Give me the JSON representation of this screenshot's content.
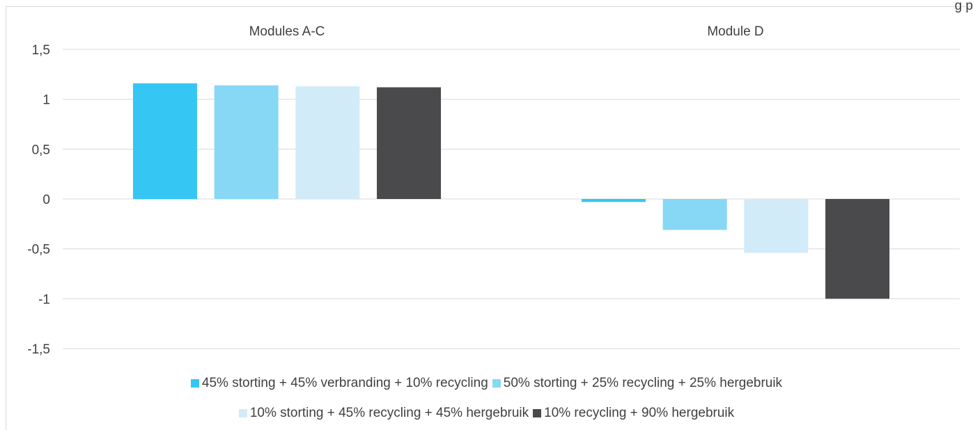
{
  "corner_text": "g  p",
  "chart_data": {
    "type": "bar",
    "title": "",
    "xlabel": "",
    "ylabel": "",
    "categories": [
      "Modules A-C",
      "Module D"
    ],
    "ylim": [
      -1.5,
      1.5
    ],
    "yticks": [
      "1,5",
      "1",
      "0,5",
      "0",
      "-0,5",
      "-1",
      "-1,5"
    ],
    "ytick_values": [
      1.5,
      1,
      0.5,
      0,
      -0.5,
      -1,
      -1.5
    ],
    "grid": true,
    "legend_position": "bottom",
    "series": [
      {
        "name": "45% storting + 45% verbranding + 10% recycling",
        "color": "#35c6f4",
        "values": [
          1.16,
          -0.03
        ]
      },
      {
        "name": "50% storting + 25% recycling + 25% hergebruik",
        "color": "#87d8f5",
        "values": [
          1.14,
          -0.31
        ]
      },
      {
        "name": "10% storting + 45% recycling + 45% hergebruik",
        "color": "#d1ecf8",
        "values": [
          1.13,
          -0.54
        ]
      },
      {
        "name": "10% recycling + 90% hergebruik",
        "color": "#4a4a4c",
        "values": [
          1.12,
          -1.0
        ]
      }
    ]
  }
}
